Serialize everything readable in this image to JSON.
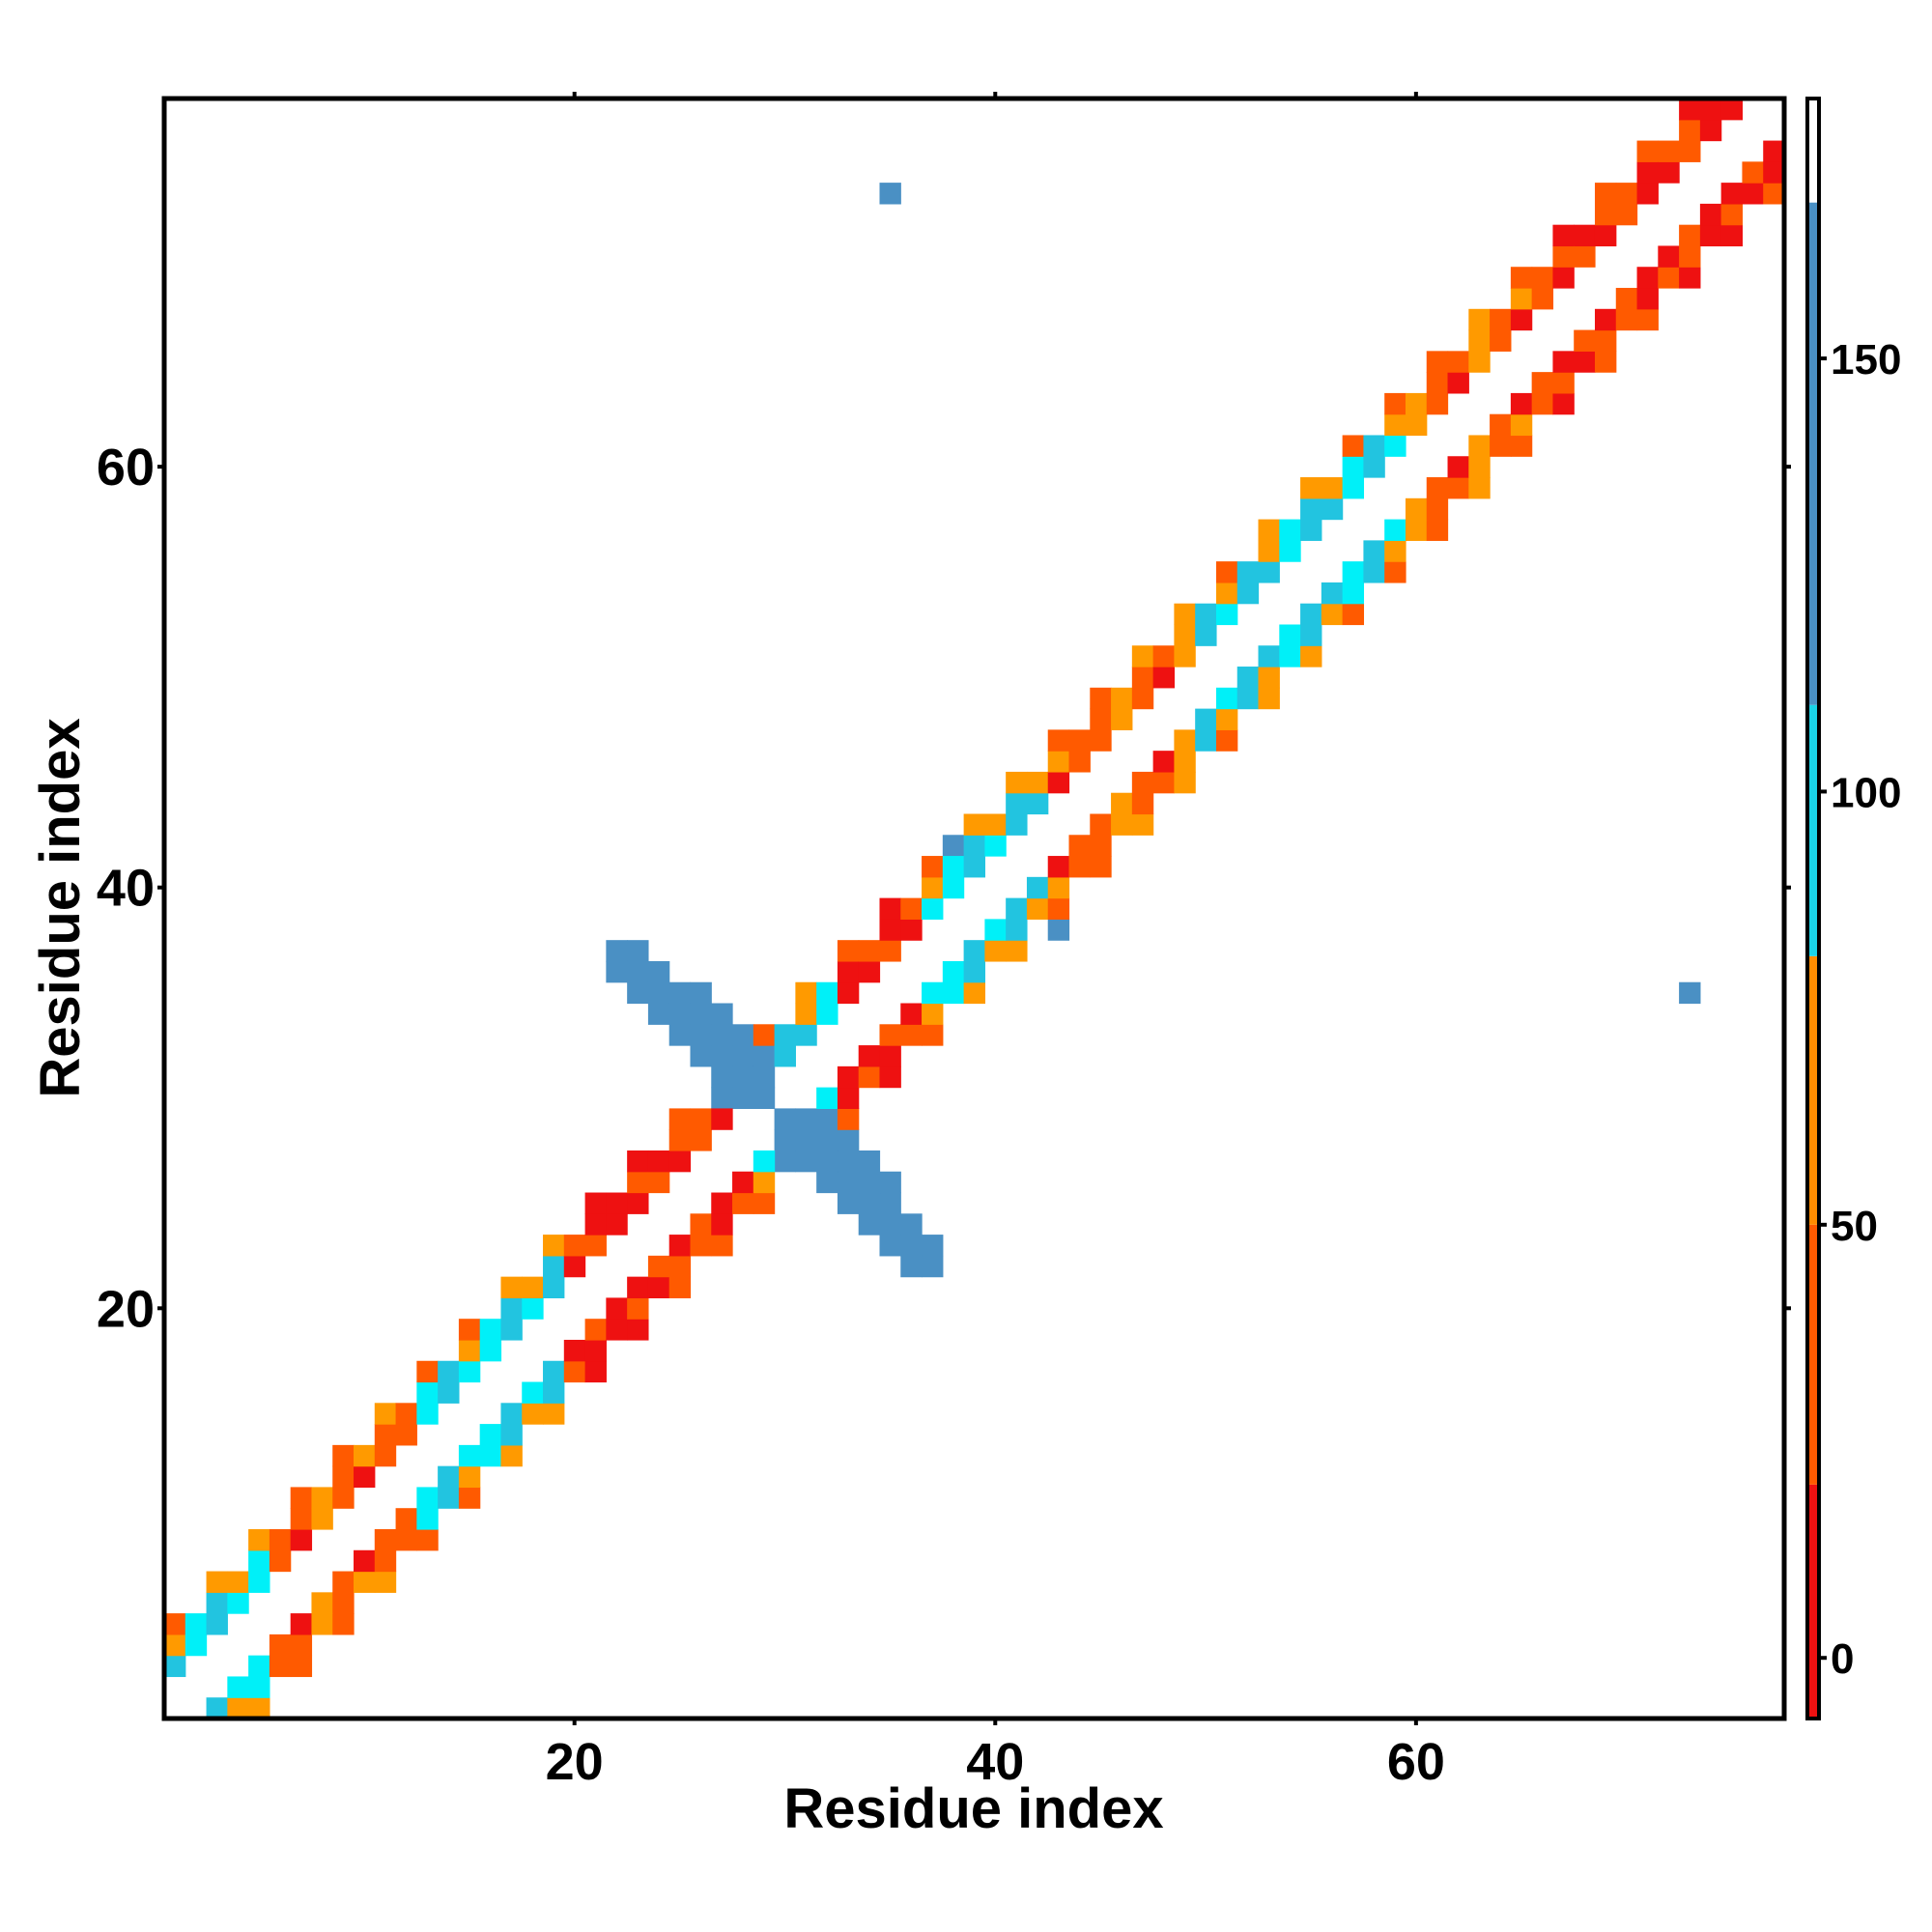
{
  "chart_data": {
    "type": "heatmap",
    "title": "",
    "xlabel": "Residue index",
    "ylabel": "Residue index",
    "xlim": [
      1,
      77
    ],
    "ylim": [
      1,
      77
    ],
    "x_ticks": [
      20,
      40,
      60
    ],
    "y_ticks": [
      20,
      40,
      60
    ],
    "colorbar": {
      "range": [
        -7,
        180
      ],
      "ticks": [
        0,
        50,
        100,
        150
      ],
      "bands": [
        {
          "from": -7,
          "to": 20,
          "color": "#ee1111"
        },
        {
          "from": 20,
          "to": 50,
          "color": "#ff5a00"
        },
        {
          "from": 50,
          "to": 81,
          "color": "#ff8c00"
        },
        {
          "from": 81,
          "to": 110,
          "color": "#1ad3e8"
        },
        {
          "from": 110,
          "to": 168,
          "color": "#4a90c4"
        },
        {
          "from": 168,
          "to": 180,
          "color": "#ffffff"
        }
      ]
    },
    "category_colors": {
      "red": "#ee1111",
      "orange_red": "#ff5a00",
      "orange": "#ff9a00",
      "cyan": "#00f0f8",
      "light_blue": "#22c4e0",
      "steel_blue": "#4a90c4"
    },
    "band_pattern": {
      "description": "Contact cells along i-j = 2,3,4 on both sides of the diagonal",
      "segments": [
        {
          "from": 1,
          "to": 6,
          "color": "light_blue"
        },
        {
          "from": 6,
          "to": 13,
          "color": "orange_red"
        },
        {
          "from": 13,
          "to": 20,
          "color": "light_blue"
        },
        {
          "from": 20,
          "to": 29,
          "color": "red"
        },
        {
          "from": 29,
          "to": 33,
          "color": "light_blue"
        },
        {
          "from": 33,
          "to": 37,
          "color": "red"
        },
        {
          "from": 37,
          "to": 43,
          "color": "light_blue"
        },
        {
          "from": 43,
          "to": 50,
          "color": "orange_red"
        },
        {
          "from": 50,
          "to": 60,
          "color": "light_blue"
        },
        {
          "from": 60,
          "to": 67,
          "color": "orange_red"
        },
        {
          "from": 67,
          "to": 77,
          "color": "red"
        }
      ]
    },
    "extra_cells": [
      {
        "x": 35,
        "y": 73,
        "color": "steel_blue"
      },
      {
        "x": 73,
        "y": 35,
        "color": "steel_blue"
      },
      {
        "x": 38,
        "y": 42,
        "color": "steel_blue"
      },
      {
        "x": 43,
        "y": 38,
        "color": "steel_blue"
      }
    ],
    "antiparallel_sheet": {
      "description": "Steel-blue hairpin cross near residues 22-37",
      "cells_upper": [
        [
          22,
          37
        ],
        [
          23,
          37
        ],
        [
          22,
          36
        ],
        [
          23,
          36
        ],
        [
          24,
          36
        ],
        [
          23,
          35
        ],
        [
          24,
          35
        ],
        [
          25,
          35
        ],
        [
          26,
          35
        ],
        [
          24,
          34
        ],
        [
          25,
          34
        ],
        [
          26,
          34
        ],
        [
          27,
          34
        ],
        [
          25,
          33
        ],
        [
          26,
          33
        ],
        [
          27,
          33
        ],
        [
          28,
          33
        ],
        [
          26,
          32
        ],
        [
          27,
          32
        ],
        [
          28,
          32
        ],
        [
          29,
          32
        ],
        [
          27,
          31
        ],
        [
          28,
          31
        ],
        [
          29,
          31
        ],
        [
          27,
          30
        ],
        [
          28,
          30
        ],
        [
          29,
          30
        ]
      ],
      "cells_lower": [
        [
          37,
          22
        ],
        [
          37,
          23
        ],
        [
          36,
          22
        ],
        [
          36,
          23
        ],
        [
          36,
          24
        ],
        [
          35,
          23
        ],
        [
          35,
          24
        ],
        [
          35,
          25
        ],
        [
          35,
          26
        ],
        [
          34,
          24
        ],
        [
          34,
          25
        ],
        [
          34,
          26
        ],
        [
          34,
          27
        ],
        [
          33,
          25
        ],
        [
          33,
          26
        ],
        [
          33,
          27
        ],
        [
          33,
          28
        ],
        [
          32,
          26
        ],
        [
          32,
          27
        ],
        [
          32,
          28
        ],
        [
          32,
          29
        ],
        [
          31,
          27
        ],
        [
          31,
          28
        ],
        [
          31,
          29
        ],
        [
          30,
          27
        ],
        [
          30,
          28
        ],
        [
          30,
          29
        ]
      ]
    }
  }
}
